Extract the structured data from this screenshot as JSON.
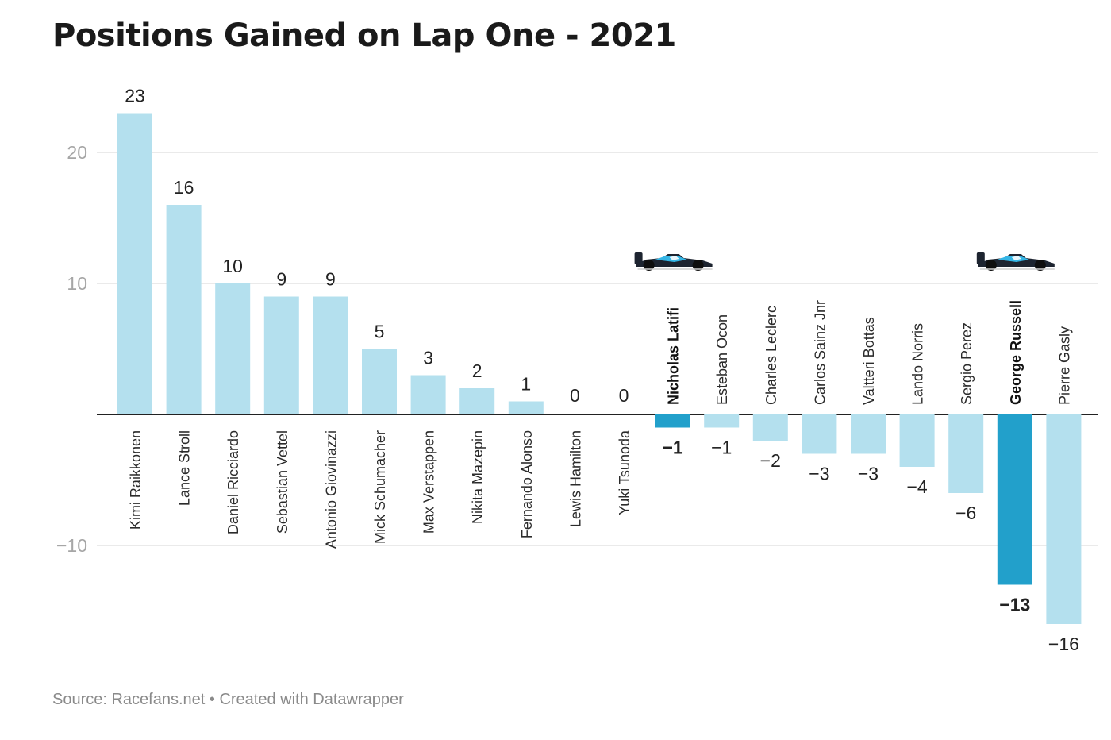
{
  "title": "Positions Gained on Lap One - 2021",
  "source": "Source: Racefans.net • Created with Datawrapper",
  "chart_data": {
    "type": "bar",
    "title": "Positions Gained on Lap One - 2021",
    "xlabel": "",
    "ylabel": "",
    "ylim": [
      -18,
      25
    ],
    "yticks": [
      -10,
      10,
      20
    ],
    "grid": true,
    "categories": [
      "Kimi Raikkonen",
      "Lance Stroll",
      "Daniel Ricciardo",
      "Sebastian Vettel",
      "Antonio Giovinazzi",
      "Mick Schumacher",
      "Max Verstappen",
      "Nikita Mazepin",
      "Fernando Alonso",
      "Lewis Hamilton",
      "Yuki Tsunoda",
      "Nicholas Latifi",
      "Esteban Ocon",
      "Charles Leclerc",
      "Carlos Sainz Jnr",
      "Valtteri Bottas",
      "Lando Norris",
      "Sergio Perez",
      "George Russell",
      "Pierre Gasly"
    ],
    "values": [
      23,
      16,
      10,
      9,
      9,
      5,
      3,
      2,
      1,
      0,
      0,
      -1,
      -1,
      -2,
      -3,
      -3,
      -4,
      -6,
      -13,
      -16
    ],
    "value_labels": [
      "23",
      "16",
      "10",
      "9",
      "9",
      "5",
      "3",
      "2",
      "1",
      "0",
      "0",
      "−1",
      "−1",
      "−2",
      "−3",
      "−3",
      "−4",
      "−6",
      "−13",
      "−16"
    ],
    "highlighted": [
      "Nicholas Latifi",
      "George Russell"
    ],
    "colors": {
      "bar": "#b4e0ee",
      "highlight": "#22a0cb",
      "grid": "#e3e3e3",
      "zero_line": "#222222"
    },
    "annotations": [
      {
        "category": "Nicholas Latifi",
        "icon": "williams-f1-car-icon"
      },
      {
        "category": "George Russell",
        "icon": "williams-f1-car-icon"
      }
    ]
  }
}
